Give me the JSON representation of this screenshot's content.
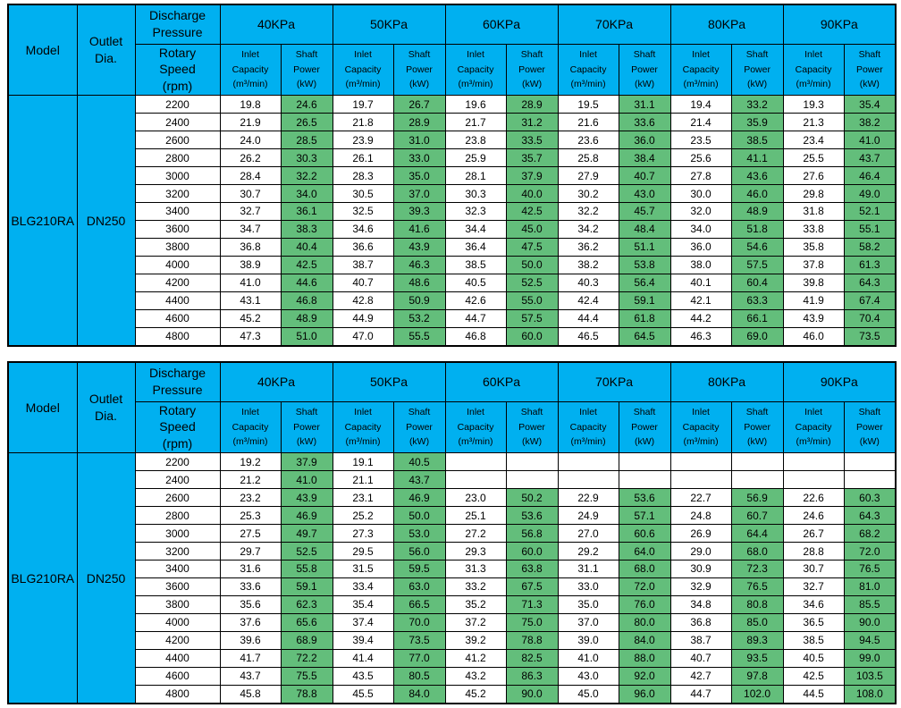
{
  "colors": {
    "header_blue": "#00B0F0",
    "shaft_green": "#63BE7B",
    "border_black": "#000000",
    "cell_white": "#FFFFFF"
  },
  "header_labels": {
    "model": "Model",
    "outlet_dia": "Outlet\nDia.",
    "discharge_pressure": "Discharge\nPressure",
    "rotary_speed": "Rotary\nSpeed\n(rpm)",
    "inlet_capacity": "Inlet\nCapacity\n(m³/min)",
    "shaft_power": "Shaft\nPower\n(kW)",
    "pressure_groups": [
      "40KPa",
      "50KPa",
      "60KPa",
      "70KPa",
      "80KPa",
      "90KPa"
    ]
  },
  "tables": [
    {
      "model": "BLG210RA",
      "outlet_dia": "DN250",
      "rows": [
        {
          "rpm": "2200",
          "values": [
            "19.8",
            "24.6",
            "19.7",
            "26.7",
            "19.6",
            "28.9",
            "19.5",
            "31.1",
            "19.4",
            "33.2",
            "19.3",
            "35.4"
          ]
        },
        {
          "rpm": "2400",
          "values": [
            "21.9",
            "26.5",
            "21.8",
            "28.9",
            "21.7",
            "31.2",
            "21.6",
            "33.6",
            "21.4",
            "35.9",
            "21.3",
            "38.2"
          ]
        },
        {
          "rpm": "2600",
          "values": [
            "24.0",
            "28.5",
            "23.9",
            "31.0",
            "23.8",
            "33.5",
            "23.6",
            "36.0",
            "23.5",
            "38.5",
            "23.4",
            "41.0"
          ]
        },
        {
          "rpm": "2800",
          "values": [
            "26.2",
            "30.3",
            "26.1",
            "33.0",
            "25.9",
            "35.7",
            "25.8",
            "38.4",
            "25.6",
            "41.1",
            "25.5",
            "43.7"
          ]
        },
        {
          "rpm": "3000",
          "values": [
            "28.4",
            "32.2",
            "28.3",
            "35.0",
            "28.1",
            "37.9",
            "27.9",
            "40.7",
            "27.8",
            "43.6",
            "27.6",
            "46.4"
          ]
        },
        {
          "rpm": "3200",
          "values": [
            "30.7",
            "34.0",
            "30.5",
            "37.0",
            "30.3",
            "40.0",
            "30.2",
            "43.0",
            "30.0",
            "46.0",
            "29.8",
            "49.0"
          ]
        },
        {
          "rpm": "3400",
          "values": [
            "32.7",
            "36.1",
            "32.5",
            "39.3",
            "32.3",
            "42.5",
            "32.2",
            "45.7",
            "32.0",
            "48.9",
            "31.8",
            "52.1"
          ]
        },
        {
          "rpm": "3600",
          "values": [
            "34.7",
            "38.3",
            "34.6",
            "41.6",
            "34.4",
            "45.0",
            "34.2",
            "48.4",
            "34.0",
            "51.8",
            "33.8",
            "55.1"
          ]
        },
        {
          "rpm": "3800",
          "values": [
            "36.8",
            "40.4",
            "36.6",
            "43.9",
            "36.4",
            "47.5",
            "36.2",
            "51.1",
            "36.0",
            "54.6",
            "35.8",
            "58.2"
          ]
        },
        {
          "rpm": "4000",
          "values": [
            "38.9",
            "42.5",
            "38.7",
            "46.3",
            "38.5",
            "50.0",
            "38.2",
            "53.8",
            "38.0",
            "57.5",
            "37.8",
            "61.3"
          ]
        },
        {
          "rpm": "4200",
          "values": [
            "41.0",
            "44.6",
            "40.7",
            "48.6",
            "40.5",
            "52.5",
            "40.3",
            "56.4",
            "40.1",
            "60.4",
            "39.8",
            "64.3"
          ]
        },
        {
          "rpm": "4400",
          "values": [
            "43.1",
            "46.8",
            "42.8",
            "50.9",
            "42.6",
            "55.0",
            "42.4",
            "59.1",
            "42.1",
            "63.3",
            "41.9",
            "67.4"
          ]
        },
        {
          "rpm": "4600",
          "values": [
            "45.2",
            "48.9",
            "44.9",
            "53.2",
            "44.7",
            "57.5",
            "44.4",
            "61.8",
            "44.2",
            "66.1",
            "43.9",
            "70.4"
          ]
        },
        {
          "rpm": "4800",
          "values": [
            "47.3",
            "51.0",
            "47.0",
            "55.5",
            "46.8",
            "60.0",
            "46.5",
            "64.5",
            "46.3",
            "69.0",
            "46.0",
            "73.5"
          ]
        }
      ]
    },
    {
      "model": "BLG210RA",
      "outlet_dia": "DN250",
      "rows": [
        {
          "rpm": "2200",
          "values": [
            "19.2",
            "37.9",
            "19.1",
            "40.5",
            "",
            "",
            "",
            "",
            "",
            "",
            "",
            ""
          ]
        },
        {
          "rpm": "2400",
          "values": [
            "21.2",
            "41.0",
            "21.1",
            "43.7",
            "",
            "",
            "",
            "",
            "",
            "",
            "",
            ""
          ]
        },
        {
          "rpm": "2600",
          "values": [
            "23.2",
            "43.9",
            "23.1",
            "46.9",
            "23.0",
            "50.2",
            "22.9",
            "53.6",
            "22.7",
            "56.9",
            "22.6",
            "60.3"
          ]
        },
        {
          "rpm": "2800",
          "values": [
            "25.3",
            "46.9",
            "25.2",
            "50.0",
            "25.1",
            "53.6",
            "24.9",
            "57.1",
            "24.8",
            "60.7",
            "24.6",
            "64.3"
          ]
        },
        {
          "rpm": "3000",
          "values": [
            "27.5",
            "49.7",
            "27.3",
            "53.0",
            "27.2",
            "56.8",
            "27.0",
            "60.6",
            "26.9",
            "64.4",
            "26.7",
            "68.2"
          ]
        },
        {
          "rpm": "3200",
          "values": [
            "29.7",
            "52.5",
            "29.5",
            "56.0",
            "29.3",
            "60.0",
            "29.2",
            "64.0",
            "29.0",
            "68.0",
            "28.8",
            "72.0"
          ]
        },
        {
          "rpm": "3400",
          "values": [
            "31.6",
            "55.8",
            "31.5",
            "59.5",
            "31.3",
            "63.8",
            "31.1",
            "68.0",
            "30.9",
            "72.3",
            "30.7",
            "76.5"
          ]
        },
        {
          "rpm": "3600",
          "values": [
            "33.6",
            "59.1",
            "33.4",
            "63.0",
            "33.2",
            "67.5",
            "33.0",
            "72.0",
            "32.9",
            "76.5",
            "32.7",
            "81.0"
          ]
        },
        {
          "rpm": "3800",
          "values": [
            "35.6",
            "62.3",
            "35.4",
            "66.5",
            "35.2",
            "71.3",
            "35.0",
            "76.0",
            "34.8",
            "80.8",
            "34.6",
            "85.5"
          ]
        },
        {
          "rpm": "4000",
          "values": [
            "37.6",
            "65.6",
            "37.4",
            "70.0",
            "37.2",
            "75.0",
            "37.0",
            "80.0",
            "36.8",
            "85.0",
            "36.5",
            "90.0"
          ]
        },
        {
          "rpm": "4200",
          "values": [
            "39.6",
            "68.9",
            "39.4",
            "73.5",
            "39.2",
            "78.8",
            "39.0",
            "84.0",
            "38.7",
            "89.3",
            "38.5",
            "94.5"
          ]
        },
        {
          "rpm": "4400",
          "values": [
            "41.7",
            "72.2",
            "41.4",
            "77.0",
            "41.2",
            "82.5",
            "41.0",
            "88.0",
            "40.7",
            "93.5",
            "40.5",
            "99.0"
          ]
        },
        {
          "rpm": "4600",
          "values": [
            "43.7",
            "75.5",
            "43.5",
            "80.5",
            "43.2",
            "86.3",
            "43.0",
            "92.0",
            "42.7",
            "97.8",
            "42.5",
            "103.5"
          ]
        },
        {
          "rpm": "4800",
          "values": [
            "45.8",
            "78.8",
            "45.5",
            "84.0",
            "45.2",
            "90.0",
            "45.0",
            "96.0",
            "44.7",
            "102.0",
            "44.5",
            "108.0"
          ]
        }
      ]
    }
  ]
}
